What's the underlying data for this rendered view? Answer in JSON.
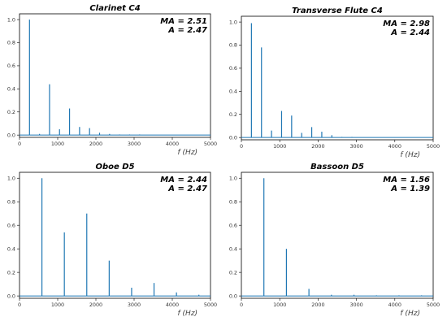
{
  "chart_data": [
    {
      "type": "line",
      "title": "Clarinet C4",
      "annotations": [
        "MA = 2.51",
        "A = 2.47"
      ],
      "xlabel": "f  (Hz)",
      "ylabel": "",
      "xlim": [
        0,
        5000
      ],
      "ylim": [
        -0.02,
        1.05
      ],
      "xticks": [
        0,
        1000,
        2000,
        3000,
        4000,
        5000
      ],
      "yticks": [
        0.0,
        0.2,
        0.4,
        0.6,
        0.8,
        1.0
      ],
      "color": "#1f77b4",
      "peaks": [
        {
          "x": 262,
          "y": 1.0
        },
        {
          "x": 524,
          "y": 0.01
        },
        {
          "x": 786,
          "y": 0.44
        },
        {
          "x": 1048,
          "y": 0.05
        },
        {
          "x": 1310,
          "y": 0.23
        },
        {
          "x": 1572,
          "y": 0.07
        },
        {
          "x": 1834,
          "y": 0.06
        },
        {
          "x": 2096,
          "y": 0.02
        },
        {
          "x": 2358,
          "y": 0.01
        },
        {
          "x": 2620,
          "y": 0.005
        },
        {
          "x": 2882,
          "y": 0.005
        },
        {
          "x": 3144,
          "y": 0.005
        }
      ]
    },
    {
      "type": "line",
      "title": "Transverse Flute C4",
      "annotations": [
        "MA = 2.98",
        "A = 2.44"
      ],
      "xlabel": "f  (Hz)",
      "ylabel": "",
      "xlim": [
        0,
        5000
      ],
      "ylim": [
        -0.02,
        1.05
      ],
      "xticks": [
        0,
        1000,
        2000,
        3000,
        4000,
        5000
      ],
      "yticks": [
        0.0,
        0.2,
        0.4,
        0.6,
        0.8,
        1.0
      ],
      "color": "#1f77b4",
      "peaks": [
        {
          "x": 262,
          "y": 0.99
        },
        {
          "x": 524,
          "y": 0.78
        },
        {
          "x": 786,
          "y": 0.06
        },
        {
          "x": 1048,
          "y": 0.23
        },
        {
          "x": 1310,
          "y": 0.19
        },
        {
          "x": 1572,
          "y": 0.04
        },
        {
          "x": 1834,
          "y": 0.09
        },
        {
          "x": 2096,
          "y": 0.05
        },
        {
          "x": 2358,
          "y": 0.02
        },
        {
          "x": 2620,
          "y": 0.005
        },
        {
          "x": 2882,
          "y": 0.005
        }
      ]
    },
    {
      "type": "line",
      "title": "Oboe D5",
      "annotations": [
        "MA = 2.44",
        "A = 2.47"
      ],
      "xlabel": "f  (Hz)",
      "ylabel": "",
      "xlim": [
        0,
        5000
      ],
      "ylim": [
        -0.02,
        1.05
      ],
      "xticks": [
        0,
        1000,
        2000,
        3000,
        4000,
        5000
      ],
      "yticks": [
        0.0,
        0.2,
        0.4,
        0.6,
        0.8,
        1.0
      ],
      "color": "#1f77b4",
      "peaks": [
        {
          "x": 587,
          "y": 1.0
        },
        {
          "x": 1174,
          "y": 0.54
        },
        {
          "x": 1761,
          "y": 0.7
        },
        {
          "x": 2348,
          "y": 0.3
        },
        {
          "x": 2935,
          "y": 0.07
        },
        {
          "x": 3522,
          "y": 0.11
        },
        {
          "x": 4109,
          "y": 0.03
        },
        {
          "x": 4696,
          "y": 0.01
        }
      ]
    },
    {
      "type": "line",
      "title": "Bassoon D5",
      "annotations": [
        "MA = 1.56",
        "A = 1.39"
      ],
      "xlabel": "f  (Hz)",
      "ylabel": "",
      "xlim": [
        0,
        5000
      ],
      "ylim": [
        -0.02,
        1.05
      ],
      "xticks": [
        0,
        1000,
        2000,
        3000,
        4000,
        5000
      ],
      "yticks": [
        0.0,
        0.2,
        0.4,
        0.6,
        0.8,
        1.0
      ],
      "color": "#1f77b4",
      "peaks": [
        {
          "x": 587,
          "y": 1.0
        },
        {
          "x": 1174,
          "y": 0.4
        },
        {
          "x": 1761,
          "y": 0.06
        },
        {
          "x": 2348,
          "y": 0.01
        },
        {
          "x": 2935,
          "y": 0.01
        },
        {
          "x": 3522,
          "y": 0.005
        },
        {
          "x": 4109,
          "y": 0.005
        },
        {
          "x": 4696,
          "y": 0.005
        }
      ]
    }
  ]
}
